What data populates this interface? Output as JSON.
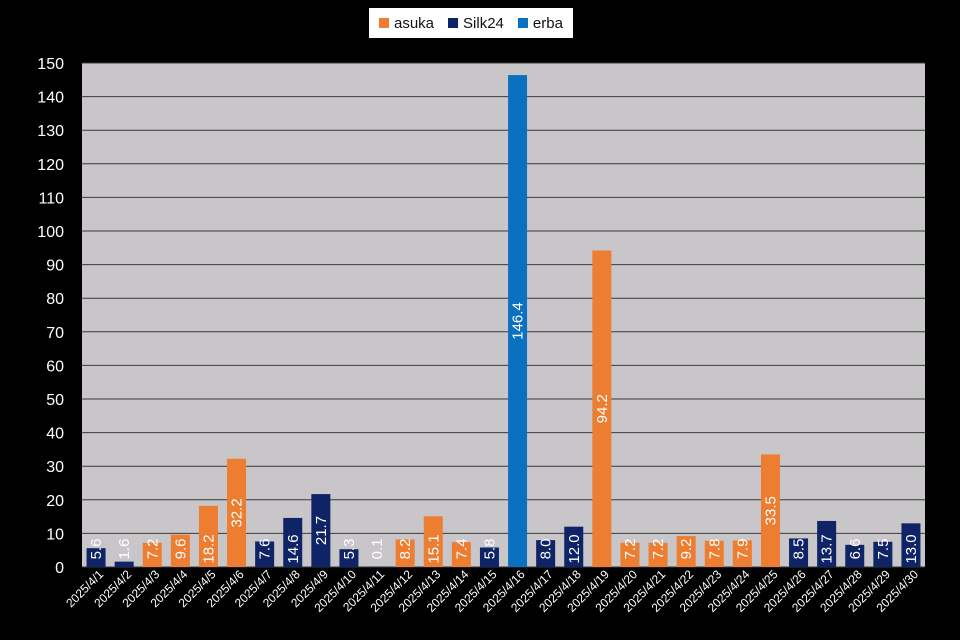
{
  "chart_data": {
    "type": "bar",
    "title": "",
    "xlabel": "",
    "ylabel": "",
    "ylim": [
      0,
      150
    ],
    "yticks": [
      0,
      10,
      20,
      30,
      40,
      50,
      60,
      70,
      80,
      90,
      100,
      110,
      120,
      130,
      140,
      150
    ],
    "grid": true,
    "legend_position": "top-center",
    "colors": {
      "asuka": "#ed7d31",
      "Silk24": "#0f2466",
      "erba": "#0a70c0",
      "plot_bg": "#c8c6c8",
      "page_bg": "#000000"
    },
    "legend": [
      "asuka",
      "Silk24",
      "erba"
    ],
    "categories": [
      "2025/4/1",
      "2025/4/2",
      "2025/4/3",
      "2025/4/4",
      "2025/4/5",
      "2025/4/6",
      "2025/4/7",
      "2025/4/8",
      "2025/4/9",
      "2025/4/10",
      "2025/4/11",
      "2025/4/12",
      "2025/4/13",
      "2025/4/14",
      "2025/4/15",
      "2025/4/16",
      "2025/4/17",
      "2025/4/18",
      "2025/4/19",
      "2025/4/20",
      "2025/4/21",
      "2025/4/22",
      "2025/4/23",
      "2025/4/24",
      "2025/4/25",
      "2025/4/26",
      "2025/4/27",
      "2025/4/28",
      "2025/4/29",
      "2025/4/30"
    ],
    "values": [
      5.6,
      1.6,
      7.2,
      9.6,
      18.2,
      32.2,
      7.6,
      14.6,
      21.7,
      5.3,
      0.1,
      8.2,
      15.1,
      7.4,
      5.8,
      146.4,
      8.0,
      12.0,
      94.2,
      7.2,
      7.2,
      9.2,
      7.8,
      7.9,
      33.5,
      8.5,
      13.7,
      6.6,
      7.5,
      13.0
    ],
    "value_labels": [
      "5.6",
      "1.6",
      "7.2",
      "9.6",
      "18.2",
      "32.2",
      "7.6",
      "14.6",
      "21.7",
      "5.3",
      "0.1",
      "8.2",
      "15.1",
      "7.4",
      "5.8",
      "146.4",
      "8.0",
      "12.0",
      "94.2",
      "7.2",
      "7.2",
      "9.2",
      "7.8",
      "7.9",
      "33.5",
      "8.5",
      "13.7",
      "6.6",
      "7.5",
      "13.0"
    ],
    "series_by_bar": [
      "Silk24",
      "Silk24",
      "asuka",
      "asuka",
      "asuka",
      "asuka",
      "Silk24",
      "Silk24",
      "Silk24",
      "Silk24",
      "Silk24",
      "asuka",
      "asuka",
      "asuka",
      "Silk24",
      "erba",
      "Silk24",
      "Silk24",
      "asuka",
      "asuka",
      "asuka",
      "asuka",
      "asuka",
      "asuka",
      "asuka",
      "Silk24",
      "Silk24",
      "Silk24",
      "Silk24",
      "Silk24"
    ]
  }
}
